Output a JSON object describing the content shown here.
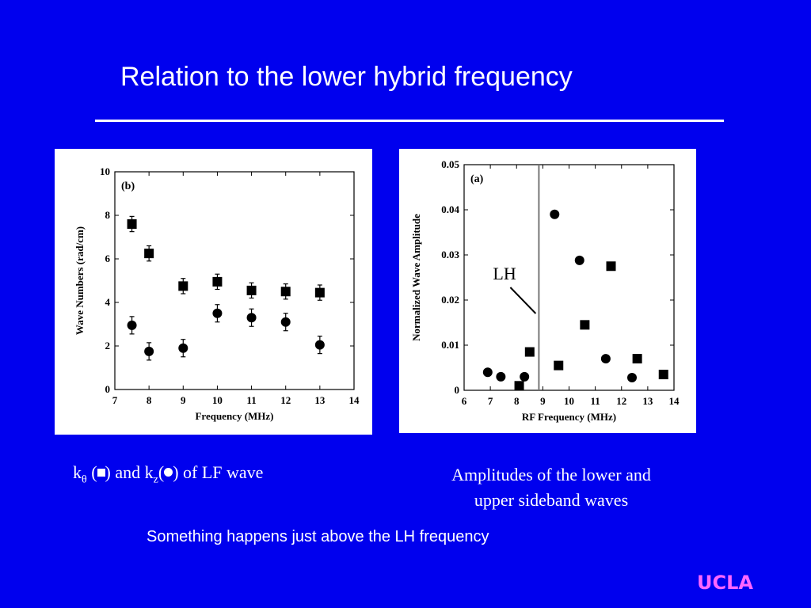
{
  "slide": {
    "title": "Relation to the lower hybrid frequency",
    "caption_left": {
      "k_theta_text": "k",
      "theta_sub": "θ",
      "part1": " (",
      "part2": ") and k",
      "z_sub": "z",
      "part3": "(",
      "part4": ") of LF wave"
    },
    "caption_right_line1": "Amplitudes of the lower and",
    "caption_right_line2": "upper sideband waves",
    "note": "Something happens just above the LH frequency",
    "logo": "UCLA",
    "colors": {
      "background": "#0000ee",
      "logo": "#ff66ff",
      "text": "#ffffff"
    }
  },
  "chart_data": [
    {
      "type": "scatter",
      "panel_label": "(b)",
      "xlabel": "Frequency (MHz)",
      "ylabel": "Wave Numbers (rad/cm)",
      "xlim": [
        7,
        14
      ],
      "ylim": [
        0,
        10
      ],
      "x_ticks": [
        7,
        8,
        9,
        10,
        11,
        12,
        13,
        14
      ],
      "y_ticks": [
        0,
        2,
        4,
        6,
        8,
        10
      ],
      "series": [
        {
          "marker": "square",
          "points": [
            {
              "x": 7.5,
              "y": 7.6,
              "err": 0.35
            },
            {
              "x": 8.0,
              "y": 6.25,
              "err": 0.35
            },
            {
              "x": 9.0,
              "y": 4.75,
              "err": 0.35
            },
            {
              "x": 10.0,
              "y": 4.95,
              "err": 0.35
            },
            {
              "x": 11.0,
              "y": 4.55,
              "err": 0.35
            },
            {
              "x": 12.0,
              "y": 4.5,
              "err": 0.35
            },
            {
              "x": 13.0,
              "y": 4.45,
              "err": 0.35
            }
          ]
        },
        {
          "marker": "circle",
          "points": [
            {
              "x": 7.5,
              "y": 2.95,
              "err": 0.4
            },
            {
              "x": 8.0,
              "y": 1.75,
              "err": 0.4
            },
            {
              "x": 9.0,
              "y": 1.9,
              "err": 0.4
            },
            {
              "x": 10.0,
              "y": 3.5,
              "err": 0.4
            },
            {
              "x": 11.0,
              "y": 3.3,
              "err": 0.4
            },
            {
              "x": 12.0,
              "y": 3.1,
              "err": 0.4
            },
            {
              "x": 13.0,
              "y": 2.05,
              "err": 0.4
            }
          ]
        }
      ]
    },
    {
      "type": "scatter",
      "panel_label": "(a)",
      "xlabel": "RF Frequency (MHz)",
      "ylabel": "Normalized Wave Amplitude",
      "xlim": [
        6,
        14
      ],
      "ylim": [
        0,
        0.05
      ],
      "x_ticks": [
        6,
        7,
        8,
        9,
        10,
        11,
        12,
        13,
        14
      ],
      "y_ticks": [
        0,
        0.01,
        0.02,
        0.03,
        0.04,
        0.05
      ],
      "y_tick_labels": [
        "0",
        "0.01",
        "0.02",
        "0.03",
        "0.04",
        "0.05"
      ],
      "vline": {
        "x": 8.85,
        "label": "LH"
      },
      "series": [
        {
          "marker": "circle",
          "points": [
            {
              "x": 6.9,
              "y": 0.004
            },
            {
              "x": 7.4,
              "y": 0.003
            },
            {
              "x": 8.3,
              "y": 0.003
            },
            {
              "x": 9.45,
              "y": 0.039
            },
            {
              "x": 10.4,
              "y": 0.0288
            },
            {
              "x": 11.4,
              "y": 0.007
            },
            {
              "x": 12.4,
              "y": 0.0028
            }
          ]
        },
        {
          "marker": "square",
          "points": [
            {
              "x": 8.1,
              "y": 0.001
            },
            {
              "x": 8.5,
              "y": 0.0085
            },
            {
              "x": 9.6,
              "y": 0.0055
            },
            {
              "x": 10.6,
              "y": 0.0145
            },
            {
              "x": 11.6,
              "y": 0.0275
            },
            {
              "x": 12.6,
              "y": 0.007
            },
            {
              "x": 13.6,
              "y": 0.0035
            }
          ]
        }
      ]
    }
  ]
}
